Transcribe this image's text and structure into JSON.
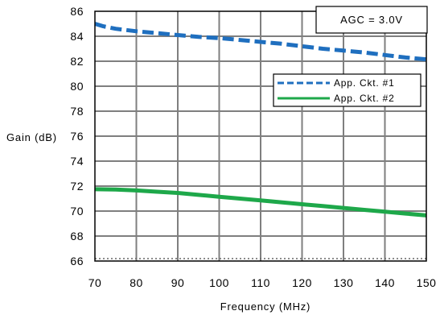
{
  "chart_data": {
    "type": "line",
    "title": "",
    "xlabel": "Frequency (MHz)",
    "ylabel": "Gain (dB)",
    "xlim": [
      70,
      150
    ],
    "ylim": [
      66,
      86
    ],
    "x_ticks": [
      70,
      80,
      90,
      100,
      110,
      120,
      130,
      140,
      150
    ],
    "y_ticks": [
      66,
      68,
      70,
      72,
      74,
      76,
      78,
      80,
      82,
      84,
      86
    ],
    "grid": true,
    "legend_position": "right",
    "annotation": "AGC = 3.0V",
    "series": [
      {
        "name": "App. Ckt. #1",
        "color": "#1f6fbf",
        "style": "dashed",
        "x": [
          70,
          72,
          75,
          80,
          85,
          90,
          95,
          100,
          105,
          110,
          115,
          120,
          125,
          130,
          135,
          140,
          145,
          150
        ],
        "y": [
          85.0,
          84.8,
          84.6,
          84.4,
          84.25,
          84.1,
          83.95,
          83.85,
          83.7,
          83.55,
          83.4,
          83.2,
          83.0,
          82.85,
          82.7,
          82.5,
          82.3,
          82.15
        ]
      },
      {
        "name": "App. Ckt. #2",
        "color": "#1ea84a",
        "style": "solid",
        "x": [
          70,
          75,
          80,
          85,
          90,
          95,
          100,
          105,
          110,
          115,
          120,
          125,
          130,
          135,
          140,
          145,
          150
        ],
        "y": [
          71.75,
          71.72,
          71.65,
          71.55,
          71.45,
          71.3,
          71.15,
          71.0,
          70.85,
          70.7,
          70.55,
          70.4,
          70.25,
          70.1,
          69.95,
          69.8,
          69.65
        ]
      }
    ]
  }
}
